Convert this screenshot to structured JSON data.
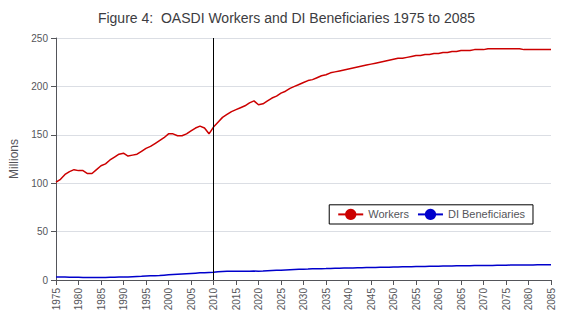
{
  "chart_data": {
    "type": "line",
    "title": "Figure 4:  OASDI Workers and DI Beneficiaries 1975 to 2085",
    "ylabel": "Millions",
    "x": [
      1975,
      1976,
      1977,
      1978,
      1979,
      1980,
      1981,
      1982,
      1983,
      1984,
      1985,
      1986,
      1987,
      1988,
      1989,
      1990,
      1991,
      1992,
      1993,
      1994,
      1995,
      1996,
      1997,
      1998,
      1999,
      2000,
      2001,
      2002,
      2003,
      2004,
      2005,
      2006,
      2007,
      2008,
      2009,
      2010,
      2011,
      2012,
      2013,
      2014,
      2015,
      2016,
      2017,
      2018,
      2019,
      2020,
      2021,
      2022,
      2023,
      2024,
      2025,
      2026,
      2027,
      2028,
      2029,
      2030,
      2031,
      2032,
      2033,
      2034,
      2035,
      2036,
      2037,
      2038,
      2039,
      2040,
      2041,
      2042,
      2043,
      2044,
      2045,
      2046,
      2047,
      2048,
      2049,
      2050,
      2051,
      2052,
      2053,
      2054,
      2055,
      2056,
      2057,
      2058,
      2059,
      2060,
      2061,
      2062,
      2063,
      2064,
      2065,
      2066,
      2067,
      2068,
      2069,
      2070,
      2071,
      2072,
      2073,
      2074,
      2075,
      2076,
      2077,
      2078,
      2079,
      2080,
      2081,
      2082,
      2083,
      2084,
      2085
    ],
    "series": [
      {
        "name": "Workers",
        "color": "#CC0000",
        "values": [
          101,
          104,
          109,
          112,
          114,
          113,
          113,
          110,
          110,
          114,
          118,
          120,
          124,
          127,
          130,
          131,
          128,
          129,
          130,
          133,
          136,
          138,
          141,
          144,
          147,
          151,
          151,
          149,
          149,
          151,
          154,
          157,
          159,
          157,
          151,
          158,
          163,
          168,
          171,
          174,
          176,
          178,
          180,
          183,
          185,
          181,
          182,
          185,
          188,
          190,
          193,
          195,
          198,
          200,
          202,
          204,
          206,
          207,
          209,
          211,
          212,
          214,
          215,
          216,
          217,
          218,
          219,
          220,
          221,
          222,
          223,
          224,
          225,
          226,
          227,
          228,
          229,
          229,
          230,
          231,
          232,
          232,
          233,
          233,
          234,
          234,
          235,
          235,
          236,
          236,
          237,
          237,
          237,
          238,
          238,
          238,
          239,
          239,
          239,
          239,
          239,
          239,
          239,
          239,
          238,
          238,
          238,
          238,
          238,
          238,
          238
        ]
      },
      {
        "name": "DI Beneficiaries",
        "color": "#0000CC",
        "values": [
          3.0,
          3.1,
          3.0,
          2.9,
          2.9,
          2.8,
          2.7,
          2.6,
          2.6,
          2.6,
          2.7,
          2.7,
          2.8,
          2.9,
          3.0,
          3.1,
          3.2,
          3.4,
          3.6,
          3.8,
          4.1,
          4.3,
          4.5,
          4.7,
          5.0,
          5.3,
          5.6,
          5.9,
          6.2,
          6.5,
          6.8,
          7.1,
          7.4,
          7.5,
          7.8,
          8.0,
          8.5,
          8.9,
          9.0,
          9.0,
          9.0,
          9.0,
          9.0,
          9.1,
          9.2,
          9.1,
          9.2,
          9.5,
          9.8,
          10.0,
          10.2,
          10.4,
          10.6,
          10.8,
          11.0,
          11.2,
          11.3,
          11.5,
          11.6,
          11.7,
          11.8,
          12.0,
          12.1,
          12.2,
          12.3,
          12.4,
          12.5,
          12.6,
          12.7,
          12.8,
          12.9,
          13.0,
          13.1,
          13.2,
          13.3,
          13.4,
          13.5,
          13.6,
          13.7,
          13.8,
          13.9,
          14.0,
          14.0,
          14.1,
          14.2,
          14.3,
          14.4,
          14.4,
          14.5,
          14.6,
          14.7,
          14.7,
          14.8,
          14.9,
          15.0,
          15.0,
          15.1,
          15.1,
          15.2,
          15.3,
          15.3,
          15.4,
          15.4,
          15.5,
          15.5,
          15.6,
          15.6,
          15.7,
          15.7,
          15.8,
          15.8
        ]
      }
    ],
    "vline": 2010,
    "xlim": [
      1975,
      2085
    ],
    "xticks": [
      1975,
      1980,
      1985,
      1990,
      1995,
      2000,
      2005,
      2010,
      2015,
      2020,
      2025,
      2030,
      2035,
      2040,
      2045,
      2050,
      2055,
      2060,
      2065,
      2070,
      2075,
      2080,
      2085
    ],
    "ylim": [
      0,
      250
    ],
    "yticks": [
      0,
      50,
      100,
      150,
      200,
      250
    ],
    "grid": true,
    "legend": "lower right"
  }
}
